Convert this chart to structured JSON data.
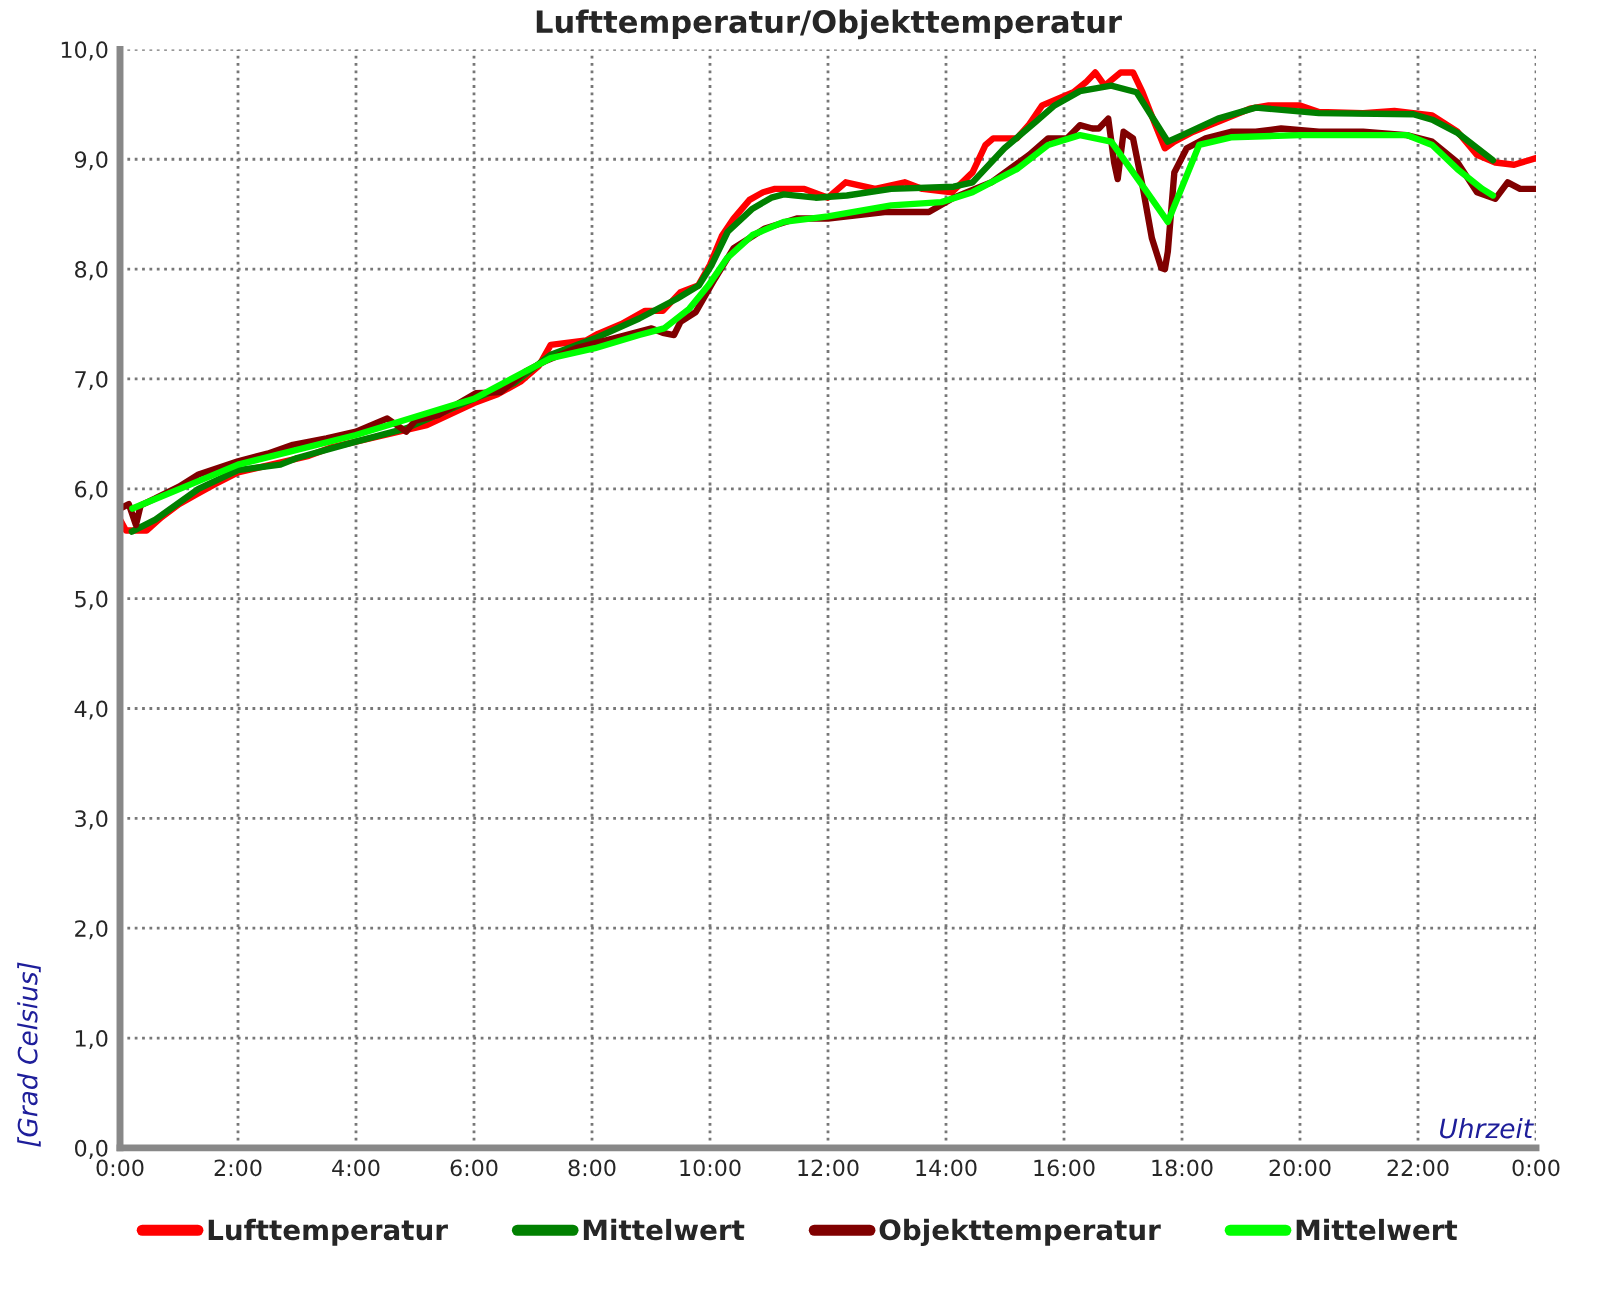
{
  "chart_data": {
    "type": "line",
    "title": "Lufttemperatur/Objekttemperatur",
    "xlabel": "Uhrzeit",
    "ylabel": "[Grad Celsius]",
    "xlim": [
      0,
      24
    ],
    "xticks": [
      {
        "value": 0,
        "label": "0:00"
      },
      {
        "value": 2,
        "label": "2:00"
      },
      {
        "value": 4,
        "label": "4:00"
      },
      {
        "value": 6,
        "label": "6:00"
      },
      {
        "value": 8,
        "label": "8:00"
      },
      {
        "value": 10,
        "label": "10:00"
      },
      {
        "value": 12,
        "label": "12:00"
      },
      {
        "value": 14,
        "label": "14:00"
      },
      {
        "value": 16,
        "label": "16:00"
      },
      {
        "value": 18,
        "label": "18:00"
      },
      {
        "value": 20,
        "label": "20:00"
      },
      {
        "value": 22,
        "label": "22:00"
      },
      {
        "value": 24,
        "label": "0:00"
      }
    ],
    "ylim": [
      0,
      10
    ],
    "yticks": [
      {
        "value": 0,
        "label": "0,0"
      },
      {
        "value": 1,
        "label": "1,0"
      },
      {
        "value": 2,
        "label": "2,0"
      },
      {
        "value": 3,
        "label": "3,0"
      },
      {
        "value": 4,
        "label": "4,0"
      },
      {
        "value": 5,
        "label": "5,0"
      },
      {
        "value": 6,
        "label": "6,0"
      },
      {
        "value": 7,
        "label": "7,0"
      },
      {
        "value": 8,
        "label": "8,0"
      },
      {
        "value": 9,
        "label": "9,0"
      },
      {
        "value": 10,
        "label": "10,0"
      }
    ],
    "grid": true,
    "legend": "bottom",
    "line_style": "solid",
    "series": [
      {
        "name": "Lufttemperatur",
        "color": "#ff0000",
        "x": [
          0,
          0.1,
          0.45,
          0.7,
          1.0,
          1.3,
          1.6,
          2.0,
          2.4,
          2.8,
          3.2,
          3.6,
          4.0,
          4.4,
          4.8,
          5.2,
          5.6,
          6.0,
          6.4,
          6.8,
          7.1,
          7.3,
          7.6,
          7.9,
          8.1,
          8.5,
          8.9,
          9.2,
          9.5,
          9.8,
          10.0,
          10.2,
          10.4,
          10.67,
          10.9,
          11.1,
          11.6,
          12.0,
          12.3,
          12.8,
          13.3,
          13.6,
          14.1,
          14.45,
          14.67,
          14.8,
          15.2,
          15.4,
          15.63,
          16.16,
          16.37,
          16.53,
          16.69,
          16.96,
          17.17,
          17.33,
          17.55,
          17.71,
          17.87,
          18.19,
          18.61,
          19.15,
          19.47,
          20.0,
          20.32,
          21.07,
          21.6,
          22.24,
          22.67,
          23.0,
          23.31,
          23.63,
          24.0
        ],
        "values": [
          5.72,
          5.62,
          5.62,
          5.74,
          5.86,
          5.95,
          6.04,
          6.15,
          6.2,
          6.25,
          6.3,
          6.38,
          6.43,
          6.48,
          6.53,
          6.58,
          6.68,
          6.78,
          6.86,
          6.98,
          7.12,
          7.31,
          7.33,
          7.35,
          7.41,
          7.5,
          7.62,
          7.62,
          7.79,
          7.85,
          8.04,
          8.3,
          8.46,
          8.63,
          8.7,
          8.73,
          8.73,
          8.65,
          8.79,
          8.73,
          8.79,
          8.73,
          8.7,
          8.88,
          9.13,
          9.19,
          9.19,
          9.31,
          9.49,
          9.61,
          9.7,
          9.79,
          9.67,
          9.79,
          9.79,
          9.61,
          9.31,
          9.1,
          9.16,
          9.25,
          9.34,
          9.46,
          9.49,
          9.49,
          9.43,
          9.42,
          9.44,
          9.4,
          9.25,
          9.04,
          8.97,
          8.95,
          9.01
        ]
      },
      {
        "name": "Mittelwert",
        "color": "#008000",
        "x": [
          0.2,
          0.6,
          1.33,
          2.0,
          2.72,
          3.0,
          4.0,
          4.85,
          6.0,
          6.67,
          7.3,
          8.05,
          8.8,
          9.44,
          9.81,
          10.03,
          10.3,
          10.72,
          11.04,
          11.25,
          11.79,
          12.32,
          13.07,
          14.13,
          14.45,
          14.99,
          15.52,
          15.84,
          16.27,
          16.8,
          17.23,
          17.76,
          17.97,
          18.61,
          19.25,
          20.32,
          21.92,
          22.24,
          22.67,
          23.27
        ],
        "values": [
          5.61,
          5.72,
          6.0,
          6.17,
          6.22,
          6.28,
          6.43,
          6.55,
          6.82,
          6.96,
          7.22,
          7.37,
          7.55,
          7.73,
          7.85,
          8.04,
          8.34,
          8.55,
          8.65,
          8.68,
          8.65,
          8.67,
          8.73,
          8.75,
          8.79,
          9.1,
          9.34,
          9.49,
          9.62,
          9.67,
          9.61,
          9.16,
          9.21,
          9.37,
          9.47,
          9.42,
          9.41,
          9.36,
          9.24,
          8.99
        ]
      },
      {
        "name": "Objekttemperatur",
        "color": "#800000",
        "x": [
          0,
          0.15,
          0.27,
          0.35,
          0.59,
          1.0,
          1.33,
          2.0,
          2.5,
          2.93,
          3.5,
          4.0,
          4.53,
          4.85,
          5.0,
          5.39,
          6.03,
          6.45,
          6.88,
          7.2,
          7.73,
          8.37,
          9.01,
          9.2,
          9.39,
          9.5,
          9.76,
          10.08,
          10.4,
          10.93,
          11.47,
          12.0,
          12.96,
          13.71,
          14.13,
          14.77,
          15.41,
          15.73,
          16.05,
          16.27,
          16.48,
          16.59,
          16.75,
          16.85,
          16.91,
          17.01,
          17.17,
          17.33,
          17.49,
          17.65,
          17.71,
          17.76,
          17.87,
          18.08,
          18.4,
          18.83,
          19.25,
          19.68,
          20.32,
          21.07,
          21.81,
          22.24,
          22.67,
          23.0,
          23.31,
          23.52,
          23.73,
          24.0
        ],
        "values": [
          5.82,
          5.86,
          5.67,
          5.85,
          5.91,
          6.02,
          6.13,
          6.25,
          6.32,
          6.4,
          6.46,
          6.52,
          6.64,
          6.52,
          6.62,
          6.67,
          6.87,
          6.88,
          7.07,
          7.16,
          7.28,
          7.37,
          7.46,
          7.42,
          7.4,
          7.52,
          7.61,
          7.91,
          8.19,
          8.37,
          8.46,
          8.46,
          8.52,
          8.52,
          8.65,
          8.79,
          9.04,
          9.19,
          9.19,
          9.31,
          9.28,
          9.28,
          9.37,
          8.97,
          8.82,
          9.25,
          9.19,
          8.76,
          8.28,
          8.01,
          8.0,
          8.16,
          8.88,
          9.1,
          9.19,
          9.25,
          9.25,
          9.28,
          9.25,
          9.25,
          9.22,
          9.16,
          8.97,
          8.7,
          8.64,
          8.79,
          8.73,
          8.73
        ]
      },
      {
        "name": "Mittelwert",
        "color": "#00ff00",
        "x": [
          0.21,
          1.33,
          2.0,
          4.0,
          6.0,
          7.3,
          8.05,
          8.8,
          9.22,
          9.65,
          9.97,
          10.29,
          10.72,
          11.25,
          12.0,
          13.07,
          13.92,
          14.45,
          15.2,
          15.73,
          16.27,
          16.8,
          17.33,
          17.76,
          18.29,
          18.83,
          20.0,
          21.81,
          22.24,
          22.67,
          23.09,
          23.27
        ],
        "values": [
          5.82,
          6.07,
          6.22,
          6.49,
          6.82,
          7.19,
          7.28,
          7.4,
          7.46,
          7.64,
          7.85,
          8.1,
          8.31,
          8.43,
          8.48,
          8.58,
          8.61,
          8.7,
          8.91,
          9.13,
          9.22,
          9.16,
          8.76,
          8.43,
          9.13,
          9.2,
          9.22,
          9.22,
          9.13,
          8.91,
          8.73,
          8.67
        ]
      }
    ]
  }
}
